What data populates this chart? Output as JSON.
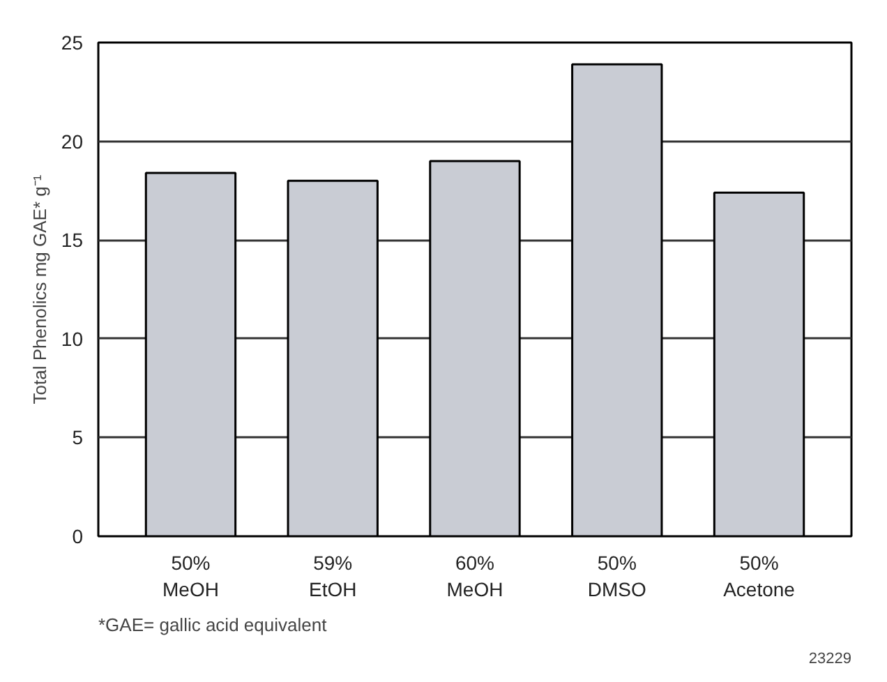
{
  "chart_data": {
    "type": "bar",
    "categories": [
      "50%\nMeOH",
      "59%\nEtOH",
      "60%\nMeOH",
      "50%\nDMSO",
      "50%\nAcetone"
    ],
    "values": [
      18.4,
      18.0,
      19.0,
      23.9,
      17.4
    ],
    "color": "#c9ccd4",
    "ylabel": "Total Phenolics mg GAE* g⁻¹",
    "ylim": [
      0,
      25
    ],
    "yticks": [
      0,
      5,
      10,
      15,
      20,
      25
    ],
    "grid": "y",
    "annotations": [
      "*GAE= gallic acid equivalent",
      "23229"
    ]
  }
}
